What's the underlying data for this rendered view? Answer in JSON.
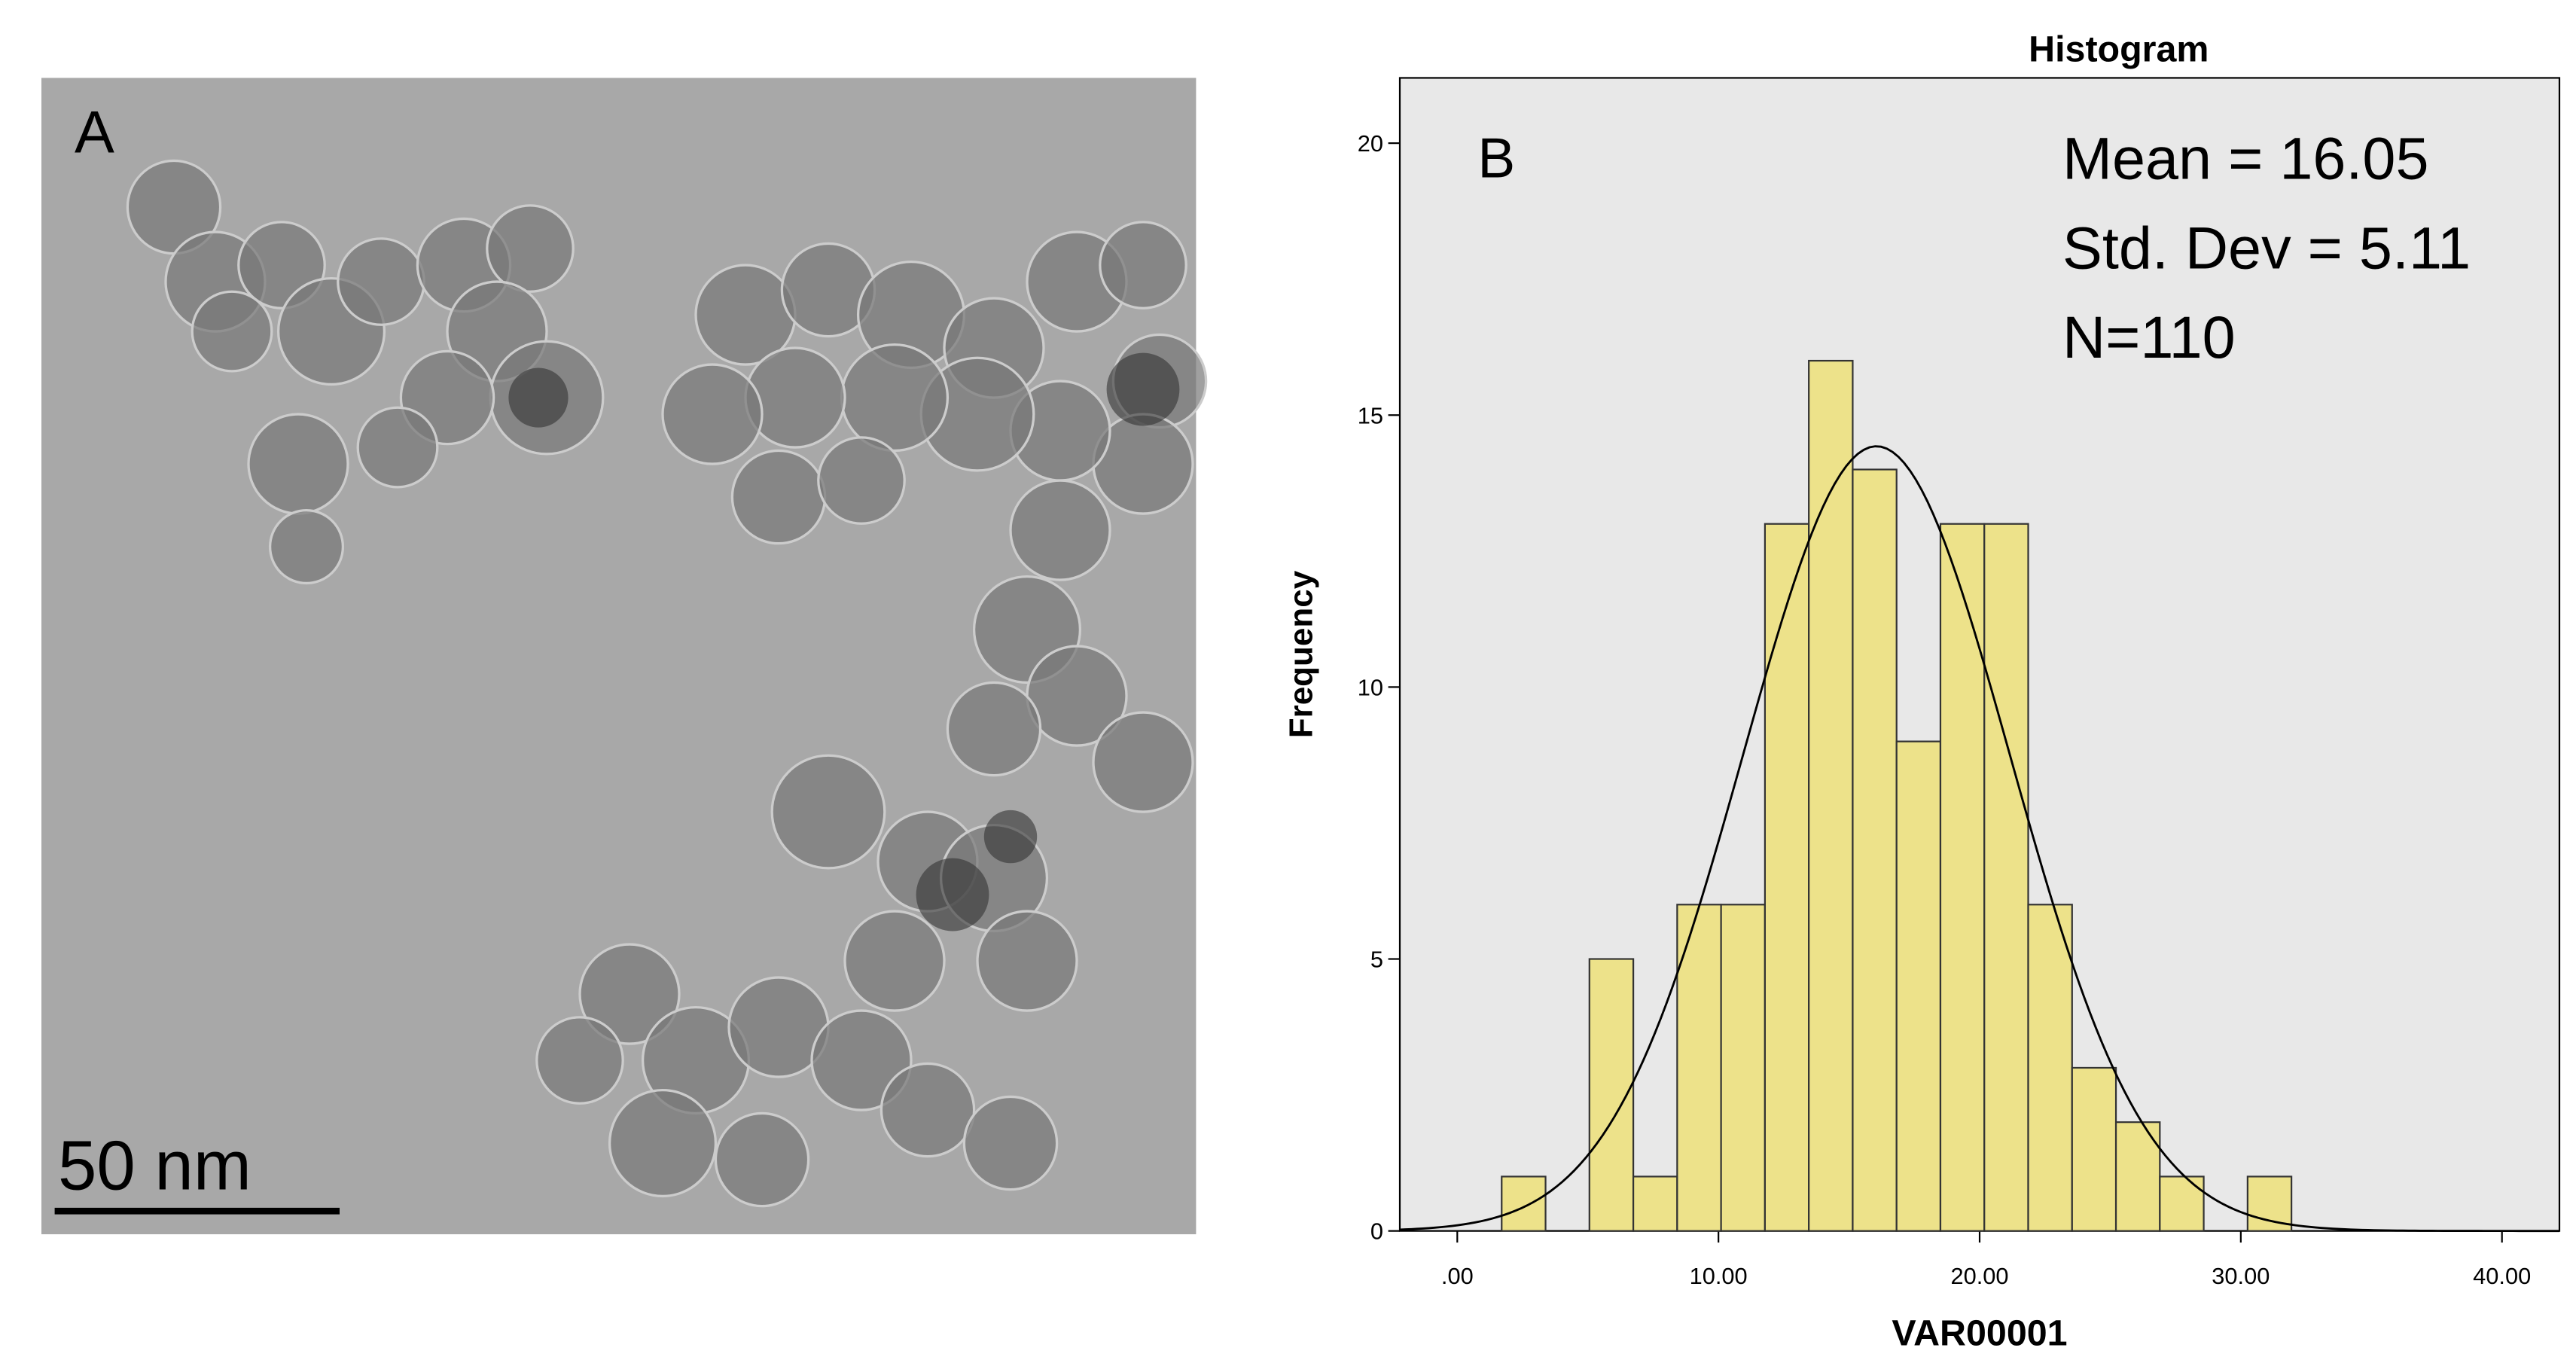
{
  "image_panel": {
    "label": "A",
    "scale_bar": "50 nm"
  },
  "chart_data": {
    "type": "histogram",
    "title": "Histogram",
    "panel_label": "B",
    "x_label": "VAR00001",
    "y_label": "Frequency",
    "bins": [
      1.7,
      3.38,
      5.06,
      6.74,
      8.42,
      10.1,
      11.78,
      13.46,
      15.14,
      16.82,
      18.5,
      20.18,
      21.86,
      23.54,
      25.22,
      26.9,
      28.58,
      30.26,
      31.94
    ],
    "values": [
      1,
      0,
      5,
      1,
      6,
      6,
      13,
      16,
      14,
      9,
      13,
      13,
      6,
      3,
      2,
      1,
      0,
      1
    ],
    "color": "#ede28a",
    "xlim": [
      -2.2,
      42.2
    ],
    "ylim": [
      0,
      21.2
    ],
    "xticks": [
      {
        "value": 0,
        "label": ".00"
      },
      {
        "value": 10,
        "label": "10.00"
      },
      {
        "value": 20,
        "label": "20.00"
      },
      {
        "value": 30,
        "label": "30.00"
      },
      {
        "value": 40,
        "label": "40.00"
      }
    ],
    "yticks": [
      0,
      5,
      10,
      15,
      20
    ],
    "stats": {
      "mean": {
        "value": 16.05,
        "label": "Mean = 16.05"
      },
      "std_dev": {
        "value": 5.11,
        "label": "Std. Dev = 5.11"
      },
      "n": {
        "value": 110,
        "label": "N=110"
      }
    }
  }
}
